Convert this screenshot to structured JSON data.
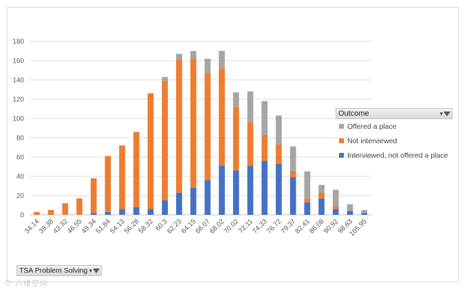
{
  "chart_data": {
    "type": "bar",
    "stacked": true,
    "categories": [
      "34.14",
      "39.38",
      "43.32",
      "46.55",
      "49.34",
      "51.84",
      "54.13",
      "56.28",
      "58.32",
      "60.3",
      "62.23",
      "64.15",
      "66.07",
      "68.02",
      "70.02",
      "72.11",
      "74.33",
      "76.72",
      "79.37",
      "82.41",
      "86.08",
      "90.92",
      "98.63",
      "105.95"
    ],
    "series": [
      {
        "name": "Interviewed, not offered a place",
        "color": "#4472c4",
        "values": [
          0,
          0,
          0,
          0,
          2,
          3,
          6,
          8,
          6,
          15,
          23,
          28,
          36,
          51,
          46,
          51,
          56,
          53,
          39,
          13,
          17,
          6,
          4,
          2
        ]
      },
      {
        "name": "Not interviewed",
        "color": "#ed7d31",
        "values": [
          3,
          5,
          12,
          17,
          36,
          58,
          66,
          78,
          120,
          124,
          138,
          134,
          111,
          101,
          66,
          45,
          27,
          20,
          6,
          4,
          6,
          3,
          0,
          0
        ]
      },
      {
        "name": "Offered a place",
        "color": "#a5a5a5",
        "values": [
          0,
          0,
          0,
          0,
          0,
          0,
          0,
          0,
          0,
          4,
          6,
          8,
          15,
          18,
          15,
          32,
          35,
          30,
          26,
          28,
          8,
          17,
          7,
          3
        ]
      }
    ],
    "ylim": [
      0,
      180
    ],
    "yticks": [
      0,
      20,
      40,
      60,
      80,
      100,
      120,
      140,
      160,
      180
    ],
    "grid": true,
    "legend_position": "right"
  },
  "legend": {
    "title": "Outcome",
    "filter_label": "▾",
    "items": [
      {
        "label": "Offered a place",
        "color": "#a5a5a5"
      },
      {
        "label": "Not interviewed",
        "color": "#ed7d31"
      },
      {
        "label": "Interviewed, not offered a place",
        "color": "#4472c4"
      }
    ]
  },
  "field_button": {
    "label": "TSA Problem Solving",
    "filter_label": "▾"
  },
  "watermark": "⊙ 六维空间"
}
